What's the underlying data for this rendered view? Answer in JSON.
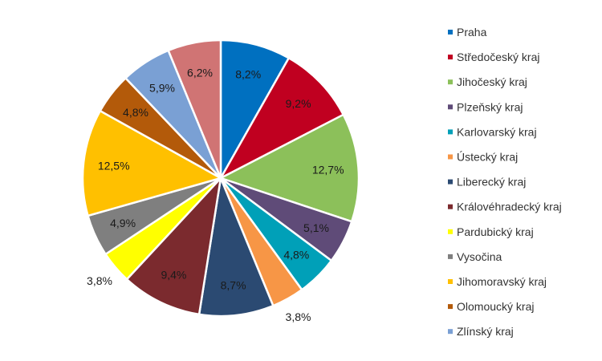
{
  "chart_data": {
    "type": "pie",
    "title": "",
    "start_angle_deg": 0,
    "direction": "clockwise",
    "legend_position": "right",
    "slices": [
      {
        "name": "Praha",
        "value": 8.2,
        "label": "8,2%",
        "color": "#0070c0"
      },
      {
        "name": "Středočeský kraj",
        "value": 9.2,
        "label": "9,2%",
        "color": "#c00020"
      },
      {
        "name": "Jihočeský kraj",
        "value": 12.7,
        "label": "12,7%",
        "color": "#8cc05a"
      },
      {
        "name": "Plzeňský kraj",
        "value": 5.1,
        "label": "5,1%",
        "color": "#5f4b78"
      },
      {
        "name": "Karlovarský kraj",
        "value": 4.8,
        "label": "4,8%",
        "color": "#00a0b8"
      },
      {
        "name": "Ústecký kraj",
        "value": 3.8,
        "label": "3,8%",
        "color": "#f79646"
      },
      {
        "name": "Liberecký kraj",
        "value": 8.7,
        "label": "8,7%",
        "color": "#2b4a72"
      },
      {
        "name": "Královéhradecký kraj",
        "value": 9.4,
        "label": "9,4%",
        "color": "#7b2a2e"
      },
      {
        "name": "Pardubický kraj",
        "value": 3.8,
        "label": "3,8%",
        "color": "#ffff00"
      },
      {
        "name": "Vysočina",
        "value": 4.9,
        "label": "4,9%",
        "color": "#7f7f7f"
      },
      {
        "name": "Jihomoravský kraj",
        "value": 12.5,
        "label": "12,5%",
        "color": "#ffc000"
      },
      {
        "name": "Olomoucký kraj",
        "value": 4.8,
        "label": "4,8%",
        "color": "#b35a0a"
      },
      {
        "name": "Zlínský kraj",
        "value": 5.9,
        "label": "5,9%",
        "color": "#7aa0d4"
      },
      {
        "name": "",
        "value": 6.2,
        "label": "6,2%",
        "color": "#d07474"
      }
    ]
  }
}
